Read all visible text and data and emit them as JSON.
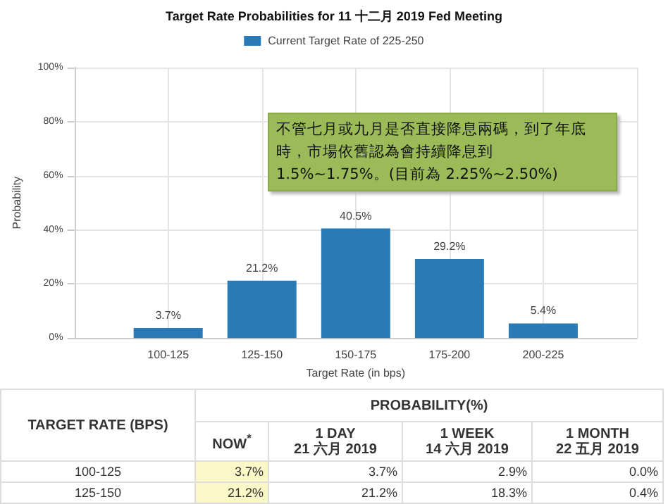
{
  "chart_data": [
    {
      "type": "bar",
      "title": "Target Rate Probabilities for 11 十二月 2019 Fed Meeting",
      "xlabel": "Target Rate (in bps)",
      "ylabel": "Probability",
      "categories": [
        "100-125",
        "125-150",
        "150-175",
        "175-200",
        "200-225"
      ],
      "series": [
        {
          "name": "Current Target Rate of 225-250",
          "color": "#2a7ab8",
          "values": [
            3.7,
            21.2,
            40.5,
            29.2,
            5.4
          ],
          "value_labels": [
            "3.7%",
            "21.2%",
            "40.5%",
            "29.2%",
            "5.4%"
          ]
        }
      ],
      "ylim": [
        0,
        100
      ],
      "yticks": [
        {
          "value": 0,
          "label": "0%"
        },
        {
          "value": 20,
          "label": "20%"
        },
        {
          "value": 40,
          "label": "40%"
        },
        {
          "value": 60,
          "label": "60%"
        },
        {
          "value": 80,
          "label": "80%"
        },
        {
          "value": 100,
          "label": "100%"
        }
      ],
      "annotations": [
        "不管七月或九月是否直接降息兩碼，到了年底時，市場依舊認為會持續降息到 1.5%~1.75%。(目前為 2.25%~2.50%)"
      ],
      "grid": true,
      "legend": "top"
    },
    {
      "type": "other",
      "ylabel": "TARGET RATE (BPS)",
      "xlabel": "PROBABILITY(%)",
      "categories": [
        "NOW$^{*}$",
        "1 DAY\n21 六月 2019",
        "1 WEEK\n14 六月 2019",
        "1 MONTH\n22 五月 2019"
      ],
      "y_categories": [
        "100-125",
        "125-150"
      ],
      "cell_labels": [
        [
          "3.7%",
          "3.7%",
          "2.9%",
          "0.0%"
        ],
        [
          "21.2%",
          "21.2%",
          "18.3%",
          "0.4%"
        ]
      ]
    }
  ]
}
